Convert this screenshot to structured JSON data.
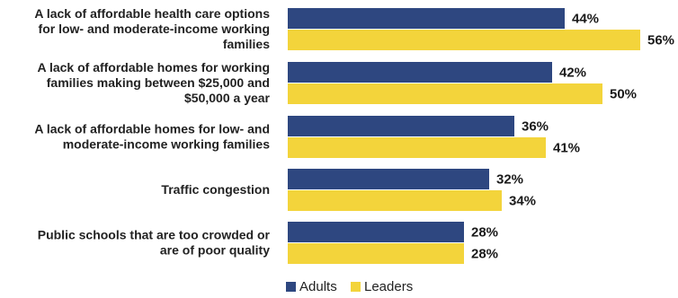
{
  "chart_data": {
    "type": "bar",
    "orientation": "horizontal",
    "categories": [
      [
        "A lack of affordable health care options",
        "for low- and moderate-income working",
        "families"
      ],
      [
        "A lack of affordable homes for working",
        "families making between $25,000 and",
        "$50,000 a year"
      ],
      [
        "A lack of affordable homes for low- and",
        "moderate-income working families"
      ],
      [
        "Traffic congestion"
      ],
      [
        "Public schools that are too crowded or",
        "are of poor quality"
      ]
    ],
    "series": [
      {
        "name": "Adults",
        "color": "#2e4780",
        "values": [
          44,
          42,
          36,
          32,
          28
        ],
        "labels": [
          "44%",
          "42%",
          "36%",
          "32%",
          "28%"
        ]
      },
      {
        "name": "Leaders",
        "color": "#f3d43b",
        "values": [
          56,
          50,
          41,
          34,
          28
        ],
        "labels": [
          "56%",
          "50%",
          "41%",
          "34%",
          "28%"
        ]
      }
    ],
    "legend": {
      "position": "bottom",
      "items": [
        "Adults",
        "Leaders"
      ]
    },
    "xlim": [
      0,
      60
    ],
    "grid": false,
    "title": "",
    "xlabel": "",
    "ylabel": ""
  }
}
